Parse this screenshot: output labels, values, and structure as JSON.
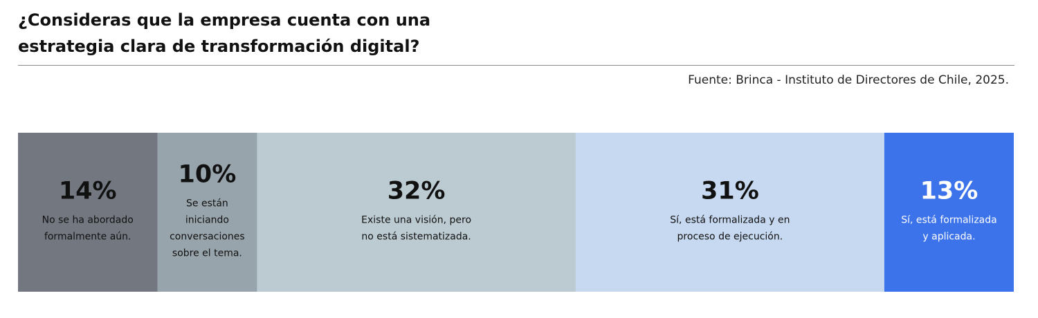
{
  "title": "¿Consideras que la empresa cuenta con una estrategia clara de transformación digital?",
  "source": "Fuente: Brinca - Instituto de Directores de Chile, 2025.",
  "chart_data": {
    "type": "bar",
    "orientation": "horizontal-stacked",
    "title": "¿Consideras que la empresa cuenta con una estrategia clara de transformación digital?",
    "source": "Fuente: Brinca - Instituto de Directores de Chile, 2025.",
    "unit": "%",
    "segments": [
      {
        "value": 14,
        "value_label": "14%",
        "label_lines": [
          "No se ha abordado",
          "formalmente aún."
        ],
        "color": "#727780",
        "text_color": "#111111"
      },
      {
        "value": 10,
        "value_label": "10%",
        "label_lines": [
          "Se están",
          "iniciando",
          "conversaciones",
          "sobre el tema."
        ],
        "color": "#98a4ab",
        "text_color": "#111111"
      },
      {
        "value": 32,
        "value_label": "32%",
        "label_lines": [
          "Existe una visión, pero",
          "no está sistematizada."
        ],
        "color": "#bccbd2",
        "text_color": "#111111"
      },
      {
        "value": 31,
        "value_label": "31%",
        "label_lines": [
          "Sí, está formalizada  y en",
          "proceso de ejecución."
        ],
        "color": "#c7d9f0",
        "text_color": "#111111"
      },
      {
        "value": 13,
        "value_label": "13%",
        "label_lines": [
          "Sí, está formalizada",
          "y aplicada."
        ],
        "color": "#3c73ea",
        "text_color": "#ffffff"
      }
    ],
    "legend": "none",
    "grid": false
  }
}
